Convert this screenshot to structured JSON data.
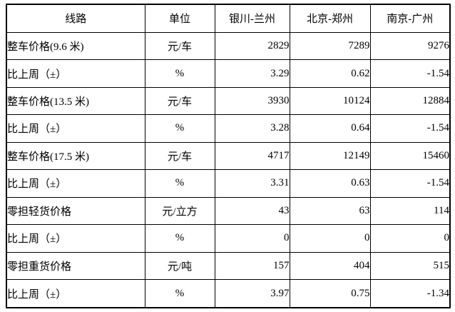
{
  "table": {
    "columns": [
      "线路",
      "单位",
      "银川-兰州",
      "北京-郑州",
      "南京-广州"
    ],
    "rows": [
      {
        "label": "整车价格(9.6 米)",
        "unit": "元/车",
        "values": [
          "2829",
          "7289",
          "9276"
        ]
      },
      {
        "label": "比上周（±）",
        "unit": "%",
        "values": [
          "3.29",
          "0.62",
          "-1.54"
        ]
      },
      {
        "label": "整车价格(13.5 米)",
        "unit": "元/车",
        "values": [
          "3930",
          "10124",
          "12884"
        ]
      },
      {
        "label": "比上周（±）",
        "unit": "%",
        "values": [
          "3.28",
          "0.64",
          "-1.54"
        ]
      },
      {
        "label": "整车价格(17.5 米)",
        "unit": "元/车",
        "values": [
          "4717",
          "12149",
          "15460"
        ]
      },
      {
        "label": "比上周（±）",
        "unit": "%",
        "values": [
          "3.31",
          "0.63",
          "-1.54"
        ]
      },
      {
        "label": "零担轻货价格",
        "unit": "元/立方",
        "values": [
          "43",
          "63",
          "114"
        ]
      },
      {
        "label": "比上周（±）",
        "unit": "%",
        "values": [
          "0",
          "0",
          "0"
        ]
      },
      {
        "label": "零担重货价格",
        "unit": "元/吨",
        "values": [
          "157",
          "404",
          "515"
        ]
      },
      {
        "label": "比上周（±）",
        "unit": "%",
        "values": [
          "3.97",
          "0.75",
          "-1.34"
        ]
      }
    ]
  }
}
